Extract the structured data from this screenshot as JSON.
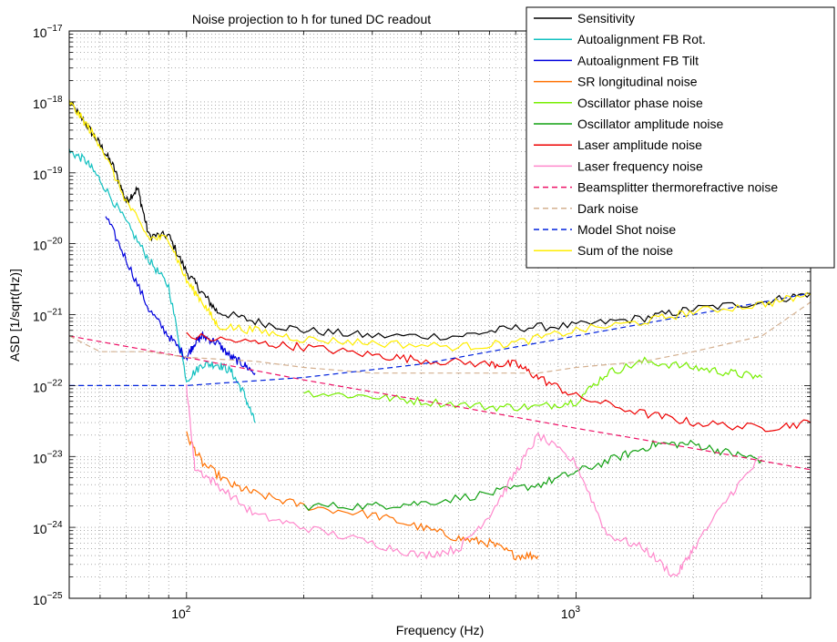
{
  "chart_data": {
    "type": "line",
    "title": "Noise projection to h for tuned DC readout",
    "xlabel": "Frequency (Hz)",
    "ylabel": "ASD [1/sqrt(Hz)]",
    "xscale": "log",
    "yscale": "log",
    "xlim": [
      50,
      4000
    ],
    "ylim": [
      1e-25,
      1e-17
    ],
    "grid": true,
    "legend_position": "top-right",
    "x_tick_labels": [
      {
        "value": 100,
        "base": "10",
        "exp": "2"
      },
      {
        "value": 1000,
        "base": "10",
        "exp": "3"
      }
    ],
    "y_tick_labels": [
      {
        "value": 1e-17,
        "base": "10",
        "exp": "−17"
      },
      {
        "value": 1e-18,
        "base": "10",
        "exp": "−18"
      },
      {
        "value": 1e-19,
        "base": "10",
        "exp": "−19"
      },
      {
        "value": 1e-20,
        "base": "10",
        "exp": "−20"
      },
      {
        "value": 1e-21,
        "base": "10",
        "exp": "−21"
      },
      {
        "value": 1e-22,
        "base": "10",
        "exp": "−22"
      },
      {
        "value": 1e-23,
        "base": "10",
        "exp": "−23"
      },
      {
        "value": 1e-24,
        "base": "10",
        "exp": "−24"
      },
      {
        "value": 1e-25,
        "base": "10",
        "exp": "−25"
      }
    ],
    "series": [
      {
        "name": "Sensitivity",
        "color": "#000000",
        "dash": false,
        "points": [
          [
            50,
            1e-18
          ],
          [
            55,
            5e-19
          ],
          [
            60,
            2.5e-19
          ],
          [
            65,
            1.2e-19
          ],
          [
            70,
            4e-20
          ],
          [
            75,
            6e-20
          ],
          [
            80,
            1.3e-20
          ],
          [
            90,
            1.3e-20
          ],
          [
            100,
            4e-21
          ],
          [
            110,
            2e-21
          ],
          [
            120,
            1.1e-21
          ],
          [
            150,
            8e-22
          ],
          [
            200,
            6e-22
          ],
          [
            300,
            5e-22
          ],
          [
            500,
            5e-22
          ],
          [
            700,
            6.5e-22
          ],
          [
            1000,
            7e-22
          ],
          [
            1500,
            9e-22
          ],
          [
            2000,
            1.2e-21
          ],
          [
            3000,
            1.5e-21
          ],
          [
            4000,
            2e-21
          ]
        ]
      },
      {
        "name": "Autoalignment FB Rot.",
        "color": "#11c0c0",
        "dash": false,
        "points": [
          [
            50,
            2e-19
          ],
          [
            55,
            1.5e-19
          ],
          [
            60,
            8e-20
          ],
          [
            70,
            2e-20
          ],
          [
            80,
            6e-21
          ],
          [
            90,
            2.5e-21
          ],
          [
            100,
            1.2e-22
          ],
          [
            110,
            2e-22
          ],
          [
            120,
            2e-22
          ],
          [
            130,
            1.6e-22
          ],
          [
            140,
            8e-23
          ],
          [
            150,
            3e-23
          ]
        ]
      },
      {
        "name": "Autoalignment FB Tilt",
        "color": "#0000dd",
        "dash": false,
        "points": [
          [
            62,
            2.5e-20
          ],
          [
            70,
            6e-21
          ],
          [
            80,
            1.2e-21
          ],
          [
            90,
            5e-22
          ],
          [
            100,
            2.5e-22
          ],
          [
            105,
            4e-22
          ],
          [
            110,
            5e-22
          ],
          [
            120,
            4e-22
          ],
          [
            130,
            2.5e-22
          ],
          [
            140,
            2e-22
          ],
          [
            150,
            1.5e-22
          ]
        ]
      },
      {
        "name": "SR longitudinal noise",
        "color": "#ff7000",
        "dash": false,
        "points": [
          [
            100,
            2e-23
          ],
          [
            110,
            8e-24
          ],
          [
            130,
            4e-24
          ],
          [
            150,
            3e-24
          ],
          [
            200,
            2e-24
          ],
          [
            300,
            1.5e-24
          ],
          [
            400,
            1e-24
          ],
          [
            500,
            7e-25
          ],
          [
            600,
            6e-25
          ],
          [
            700,
            4e-25
          ],
          [
            800,
            4e-25
          ]
        ]
      },
      {
        "name": "Oscillator phase noise",
        "color": "#77ee00",
        "dash": false,
        "points": [
          [
            200,
            8e-23
          ],
          [
            300,
            7e-23
          ],
          [
            400,
            6e-23
          ],
          [
            600,
            5e-23
          ],
          [
            800,
            5e-23
          ],
          [
            1000,
            6e-23
          ],
          [
            1200,
            1.5e-22
          ],
          [
            1500,
            2.2e-22
          ],
          [
            2000,
            1.8e-22
          ],
          [
            2500,
            1.5e-22
          ],
          [
            3000,
            1.3e-22
          ]
        ]
      },
      {
        "name": "Oscillator amplitude noise",
        "color": "#11a011",
        "dash": false,
        "points": [
          [
            200,
            2e-24
          ],
          [
            300,
            2e-24
          ],
          [
            400,
            2.2e-24
          ],
          [
            600,
            3e-24
          ],
          [
            800,
            4e-24
          ],
          [
            1000,
            6e-24
          ],
          [
            1300,
            1e-23
          ],
          [
            1600,
            1.5e-23
          ],
          [
            2000,
            1.5e-23
          ],
          [
            2500,
            1.1e-23
          ],
          [
            3000,
            9e-24
          ]
        ]
      },
      {
        "name": "Laser amplitude noise",
        "color": "#ee0000",
        "dash": false,
        "points": [
          [
            100,
            5e-22
          ],
          [
            150,
            4e-22
          ],
          [
            200,
            3.5e-22
          ],
          [
            300,
            2.7e-22
          ],
          [
            400,
            2.3e-22
          ],
          [
            600,
            2e-22
          ],
          [
            700,
            2e-22
          ],
          [
            800,
            1.3e-22
          ],
          [
            1000,
            7e-23
          ],
          [
            1500,
            4e-23
          ],
          [
            2000,
            3e-23
          ],
          [
            3000,
            2.5e-23
          ],
          [
            4000,
            3e-23
          ]
        ]
      },
      {
        "name": "Laser frequency noise",
        "color": "#ff88cc",
        "dash": false,
        "points": [
          [
            100,
            1e-22
          ],
          [
            105,
            7e-24
          ],
          [
            120,
            4e-24
          ],
          [
            150,
            1.5e-24
          ],
          [
            200,
            1e-24
          ],
          [
            300,
            6e-25
          ],
          [
            400,
            4e-25
          ],
          [
            500,
            5e-25
          ],
          [
            600,
            1.5e-24
          ],
          [
            700,
            6e-24
          ],
          [
            800,
            2e-23
          ],
          [
            1000,
            8e-24
          ],
          [
            1200,
            8e-25
          ],
          [
            1500,
            5e-25
          ],
          [
            1800,
            2e-25
          ],
          [
            2000,
            5e-25
          ],
          [
            2500,
            3e-24
          ],
          [
            3000,
            1e-23
          ]
        ]
      },
      {
        "name": "Beamsplitter thermorefractive noise",
        "color": "#ee1166",
        "dash": true,
        "points": [
          [
            50,
            5e-22
          ],
          [
            100,
            2.5e-22
          ],
          [
            200,
            1.2e-22
          ],
          [
            500,
            5e-23
          ],
          [
            1000,
            2.5e-23
          ],
          [
            2000,
            1.3e-23
          ],
          [
            4000,
            6.5e-24
          ]
        ]
      },
      {
        "name": "Dark noise",
        "color": "#d4b090",
        "dash": true,
        "points": [
          [
            50,
            5e-22
          ],
          [
            60,
            3e-22
          ],
          [
            80,
            3e-22
          ],
          [
            100,
            2.5e-22
          ],
          [
            150,
            2.2e-22
          ],
          [
            200,
            1.8e-22
          ],
          [
            300,
            1.5e-22
          ],
          [
            500,
            1.5e-22
          ],
          [
            800,
            1.5e-22
          ],
          [
            1000,
            1.8e-22
          ],
          [
            1500,
            2.2e-22
          ],
          [
            2000,
            3e-22
          ],
          [
            3000,
            5e-22
          ],
          [
            4000,
            1.5e-21
          ]
        ]
      },
      {
        "name": "Model Shot noise",
        "color": "#0022dd",
        "dash": true,
        "points": [
          [
            50,
            1e-22
          ],
          [
            100,
            1e-22
          ],
          [
            200,
            1.3e-22
          ],
          [
            400,
            2e-22
          ],
          [
            700,
            3.5e-22
          ],
          [
            1000,
            5e-22
          ],
          [
            2000,
            1e-21
          ],
          [
            4000,
            2e-21
          ]
        ]
      },
      {
        "name": "Sum of the noise",
        "color": "#ffee00",
        "dash": false,
        "points": [
          [
            50,
            1e-18
          ],
          [
            55,
            5e-19
          ],
          [
            60,
            2.5e-19
          ],
          [
            70,
            4e-20
          ],
          [
            80,
            1.2e-20
          ],
          [
            90,
            1.2e-20
          ],
          [
            100,
            3e-21
          ],
          [
            110,
            1.5e-21
          ],
          [
            120,
            7e-22
          ],
          [
            150,
            6e-22
          ],
          [
            200,
            4.5e-22
          ],
          [
            300,
            4e-22
          ],
          [
            500,
            3.5e-22
          ],
          [
            700,
            4e-22
          ],
          [
            1000,
            6e-22
          ],
          [
            1500,
            8e-22
          ],
          [
            2000,
            1.1e-21
          ],
          [
            3000,
            1.4e-21
          ],
          [
            4000,
            1.9e-21
          ]
        ]
      }
    ]
  }
}
